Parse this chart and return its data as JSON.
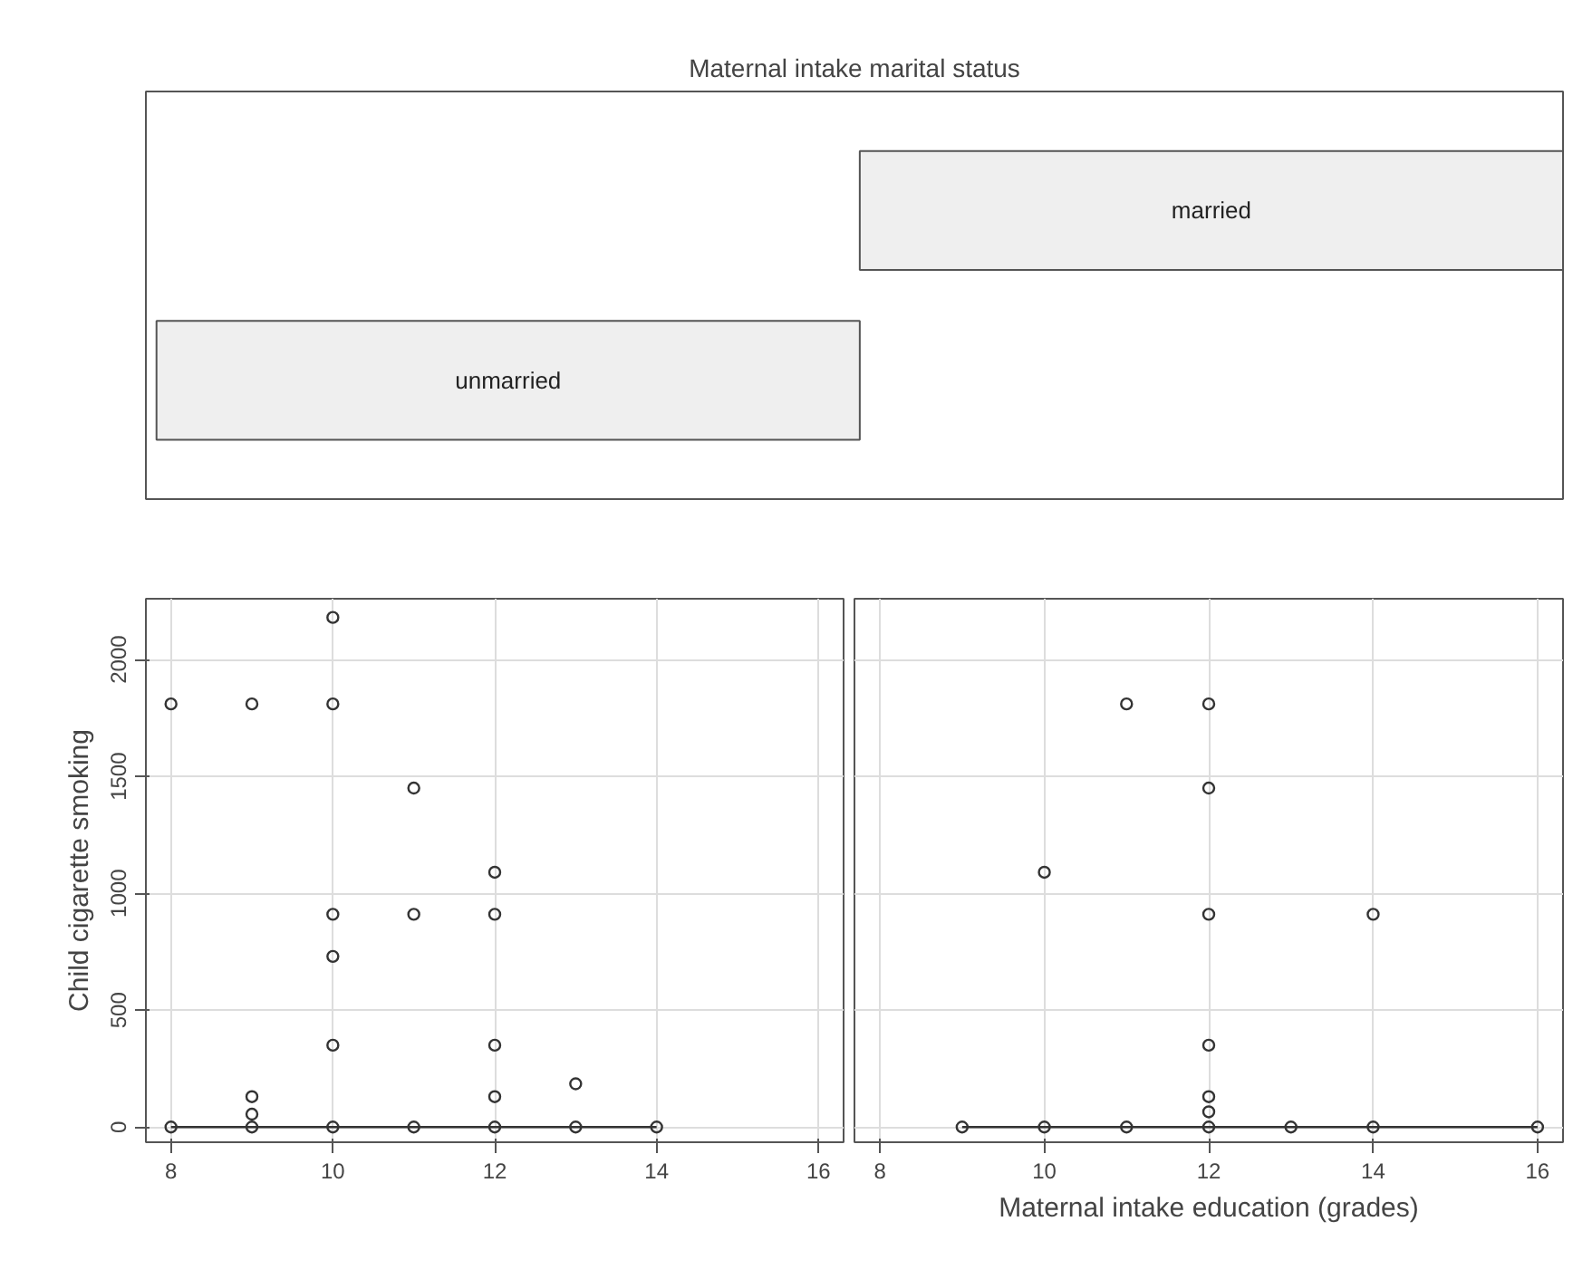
{
  "chart_data": [
    {
      "type": "scatter",
      "ylabel": "Child cigarette smoking",
      "xlim": [
        7.69,
        16.31
      ],
      "xticks": [
        8,
        10,
        12,
        14,
        16
      ],
      "ylim": [
        -65,
        2260
      ],
      "yticks": [
        0,
        500,
        1000,
        1500,
        2000
      ],
      "grid": true,
      "series": [
        {
          "type": "scatter",
          "marker": "circle",
          "color": "#333333",
          "x": [
            8,
            8,
            9,
            9,
            9,
            9,
            10,
            10,
            10,
            10,
            10,
            10,
            11,
            11,
            11,
            12,
            12,
            12,
            12,
            12,
            13,
            13,
            14
          ],
          "values": [
            1810,
            0,
            1810,
            130,
            55,
            0,
            2180,
            1810,
            910,
            730,
            350,
            0,
            1450,
            910,
            0,
            1090,
            910,
            350,
            130,
            0,
            185,
            0,
            0
          ]
        },
        {
          "type": "line",
          "color": "#333333",
          "x": [
            8,
            14
          ],
          "values": [
            0,
            0
          ]
        }
      ]
    },
    {
      "type": "scatter",
      "xlabel": "Maternal intake education (grades)",
      "xlim": [
        7.69,
        16.31
      ],
      "xticks": [
        8,
        10,
        12,
        14,
        16
      ],
      "ylim": [
        -65,
        2260
      ],
      "yticks": [
        0,
        500,
        1000,
        1500,
        2000
      ],
      "grid": true,
      "tick_labels": "x",
      "series": [
        {
          "type": "scatter",
          "marker": "circle",
          "color": "#333333",
          "x": [
            11,
            12,
            12,
            10,
            12,
            14,
            12,
            12,
            12,
            9,
            10,
            11,
            12,
            13,
            14,
            16
          ],
          "values": [
            1810,
            1810,
            1450,
            1090,
            910,
            910,
            350,
            130,
            65,
            0,
            0,
            0,
            0,
            0,
            0,
            0
          ]
        },
        {
          "type": "line",
          "color": "#333333",
          "x": [
            9,
            16
          ],
          "values": [
            0,
            0
          ]
        }
      ]
    },
    {
      "type": "other",
      "title": "Maternal intake marital status",
      "categories": [
        "unmarried",
        "married"
      ],
      "color": "#efefef"
    }
  ]
}
